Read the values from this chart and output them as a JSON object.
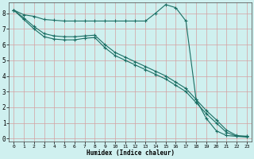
{
  "xlabel": "Humidex (Indice chaleur)",
  "ylabel": "",
  "bg_color": "#cff0ef",
  "grid_color": "#d4a0a0",
  "line_color": "#1a6e63",
  "xlim": [
    -0.5,
    23.5
  ],
  "ylim": [
    -0.2,
    8.7
  ],
  "xticks": [
    0,
    1,
    2,
    3,
    4,
    5,
    6,
    7,
    8,
    9,
    10,
    11,
    12,
    13,
    14,
    15,
    16,
    17,
    18,
    19,
    20,
    21,
    22,
    23
  ],
  "yticks": [
    0,
    1,
    2,
    3,
    4,
    5,
    6,
    7,
    8
  ],
  "line1_x": [
    0,
    1,
    2,
    3,
    4,
    5,
    6,
    7,
    8,
    9,
    10,
    11,
    12,
    13,
    14,
    15,
    16,
    17,
    18,
    19,
    20,
    21,
    22,
    23
  ],
  "line1_y": [
    8.2,
    7.9,
    7.8,
    7.6,
    7.55,
    7.5,
    7.5,
    7.5,
    7.5,
    7.5,
    7.5,
    7.5,
    7.5,
    7.5,
    8.0,
    8.55,
    8.35,
    7.5,
    2.5,
    1.3,
    0.5,
    0.2,
    0.15,
    0.15
  ],
  "line2_x": [
    0,
    1,
    2,
    3,
    4,
    5,
    6,
    7,
    8,
    9,
    10,
    11,
    12,
    13,
    14,
    15,
    16,
    17,
    18,
    19,
    20,
    21,
    22,
    23
  ],
  "line2_y": [
    8.2,
    7.7,
    7.15,
    6.7,
    6.55,
    6.5,
    6.5,
    6.55,
    6.6,
    6.0,
    5.5,
    5.2,
    4.9,
    4.6,
    4.3,
    4.0,
    3.6,
    3.2,
    2.5,
    1.8,
    1.2,
    0.55,
    0.2,
    0.15
  ],
  "line3_x": [
    0,
    1,
    2,
    3,
    4,
    5,
    6,
    7,
    8,
    9,
    10,
    11,
    12,
    13,
    14,
    15,
    16,
    17,
    18,
    19,
    20,
    21,
    22,
    23
  ],
  "line3_y": [
    8.2,
    7.6,
    7.0,
    6.5,
    6.35,
    6.3,
    6.3,
    6.4,
    6.45,
    5.8,
    5.3,
    5.0,
    4.7,
    4.4,
    4.1,
    3.8,
    3.4,
    3.0,
    2.3,
    1.6,
    1.0,
    0.4,
    0.15,
    0.1
  ]
}
